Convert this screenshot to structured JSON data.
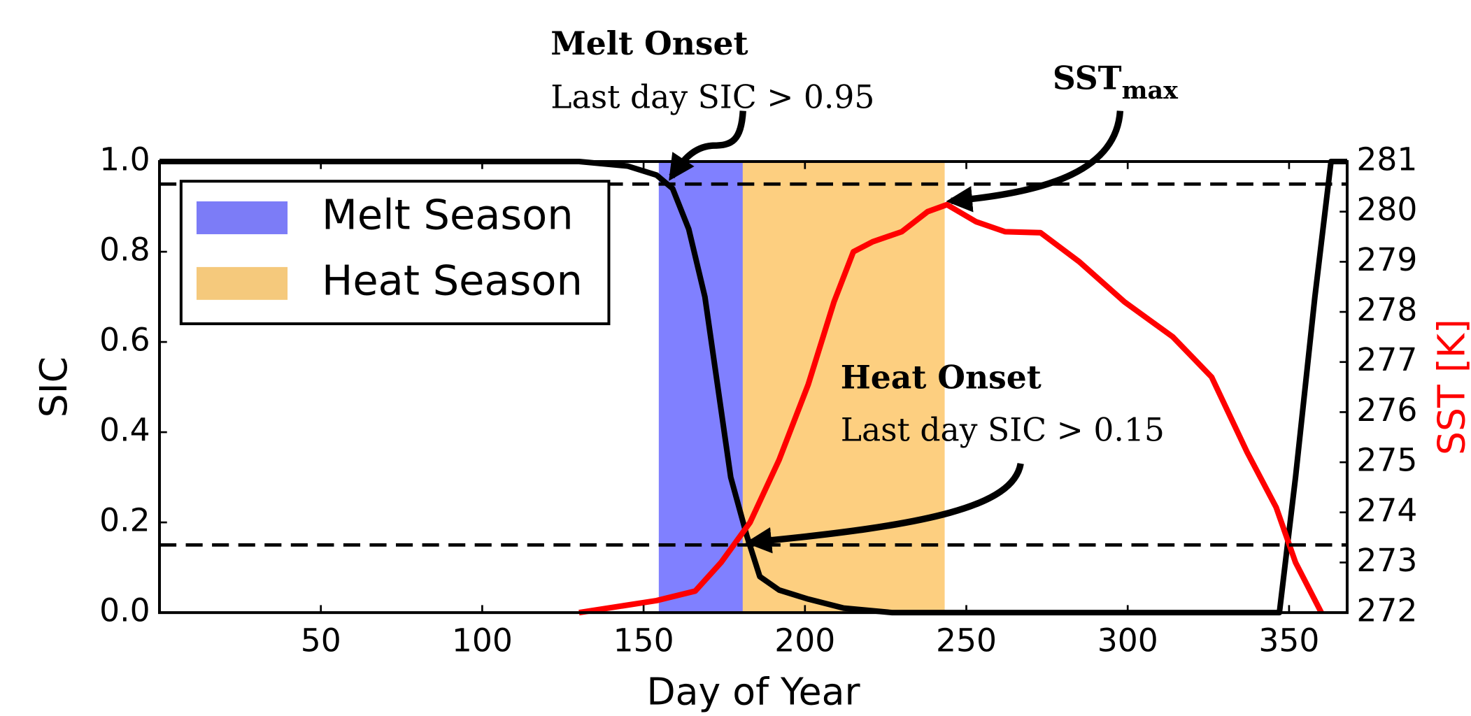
{
  "chart_data": {
    "type": "line",
    "xlabel": "Day of Year",
    "ylabel": "SIC",
    "y2label": "SST [K]",
    "xlim": [
      0,
      368
    ],
    "xticks": [
      50,
      100,
      150,
      200,
      250,
      300,
      350
    ],
    "ylim": [
      0,
      1
    ],
    "yticks": [
      {
        "value": 0,
        "label": "0.0"
      },
      0.2,
      0.4,
      0.6,
      0.8,
      {
        "value": 1,
        "label": "1.0"
      }
    ],
    "y2lim": [
      272,
      281
    ],
    "y2ticks": [
      272,
      273,
      274,
      275,
      276,
      277,
      278,
      279,
      280,
      281
    ],
    "hlines": [
      0.95,
      0.15
    ],
    "spans": [
      {
        "name": "Melt Season",
        "color": "#8080ff",
        "start": 155,
        "end": 181
      },
      {
        "name": "Heat Season",
        "color": "#fdcf80",
        "start": 181,
        "end": 243
      }
    ],
    "series": [
      {
        "name": "SIC",
        "color": "#000000",
        "x": [
          0,
          130,
          145,
          154,
          159,
          164,
          169,
          173,
          177,
          182,
          186,
          192,
          201,
          212,
          227,
          347,
          352,
          358,
          363,
          368
        ],
        "values": [
          1.0,
          1.0,
          0.99,
          0.97,
          0.94,
          0.85,
          0.7,
          0.5,
          0.3,
          0.17,
          0.08,
          0.05,
          0.03,
          0.01,
          0.0,
          0.0,
          0.3,
          0.7,
          1.0,
          1.0
        ]
      },
      {
        "name": "SST",
        "color": "#ff0000",
        "axis": "y2",
        "x": [
          130,
          154,
          166,
          174,
          183,
          192,
          201,
          209,
          215,
          221,
          230,
          238,
          244,
          253,
          262,
          273,
          285,
          299,
          314,
          326,
          337,
          346,
          352,
          360
        ],
        "values": [
          272.0,
          272.24,
          272.43,
          273.0,
          273.8,
          275.05,
          276.55,
          278.2,
          279.2,
          279.4,
          279.6,
          280.0,
          280.14,
          279.8,
          279.6,
          279.58,
          279.0,
          278.2,
          277.5,
          276.7,
          275.2,
          274.1,
          273.0,
          272.0
        ]
      }
    ],
    "annotations": [
      {
        "title": "Melt Onset",
        "text": "Last day SIC > 0.95"
      },
      {
        "title": "SST",
        "subscript": "max"
      },
      {
        "title": "Heat Onset",
        "text": "Last day SIC > 0.15"
      }
    ]
  }
}
